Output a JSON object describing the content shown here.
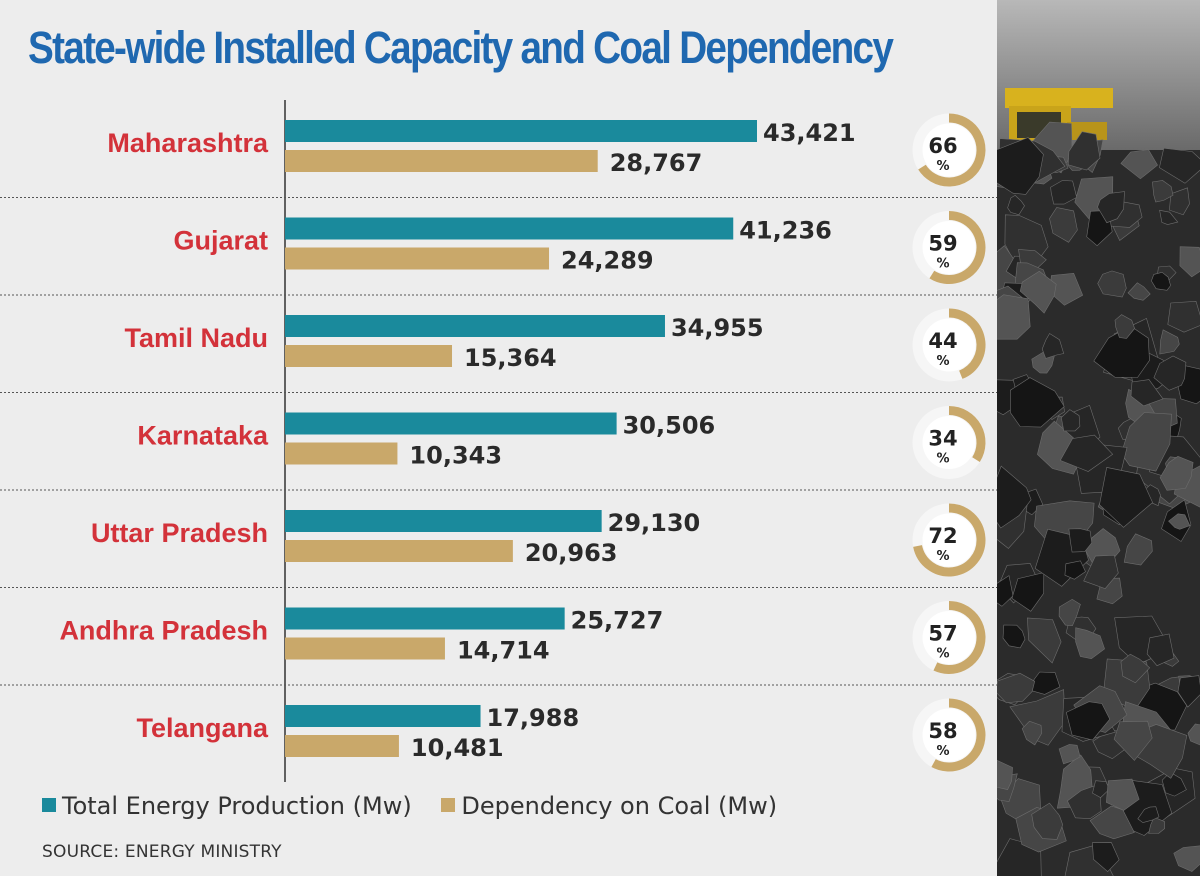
{
  "colors": {
    "title": "#1f68b0",
    "state": "#d3323a",
    "total": "#1a8a9c",
    "coal": "#c9a86a"
  },
  "chart_data": {
    "type": "bar",
    "orientation": "horizontal",
    "title": "State-wide Installed Capacity and Coal Dependency",
    "categories": [
      "Maharashtra",
      "Gujarat",
      "Tamil Nadu",
      "Karnataka",
      "Uttar Pradesh",
      "Andhra Pradesh",
      "Telangana"
    ],
    "series": [
      {
        "name": "Total Energy Production (Mw)",
        "values": [
          43421,
          41236,
          34955,
          30506,
          29130,
          25727,
          17988
        ],
        "labels": [
          "43,421",
          "41,236",
          "34,955",
          "30,506",
          "29,130",
          "25,727",
          "17,988"
        ]
      },
      {
        "name": "Dependency on Coal (Mw)",
        "values": [
          28767,
          24289,
          15364,
          10343,
          20963,
          14714,
          10481
        ],
        "labels": [
          "28,767",
          "24,289",
          "15,364",
          "10,343",
          "20,963",
          "14,714",
          "10,481"
        ]
      }
    ],
    "coal_share_percent": [
      66,
      59,
      44,
      34,
      72,
      57,
      58
    ],
    "percent_sign": "%",
    "xlim": [
      0,
      60000
    ],
    "legend": "bottom-left",
    "source": "SOURCE: ENERGY MINISTRY"
  }
}
